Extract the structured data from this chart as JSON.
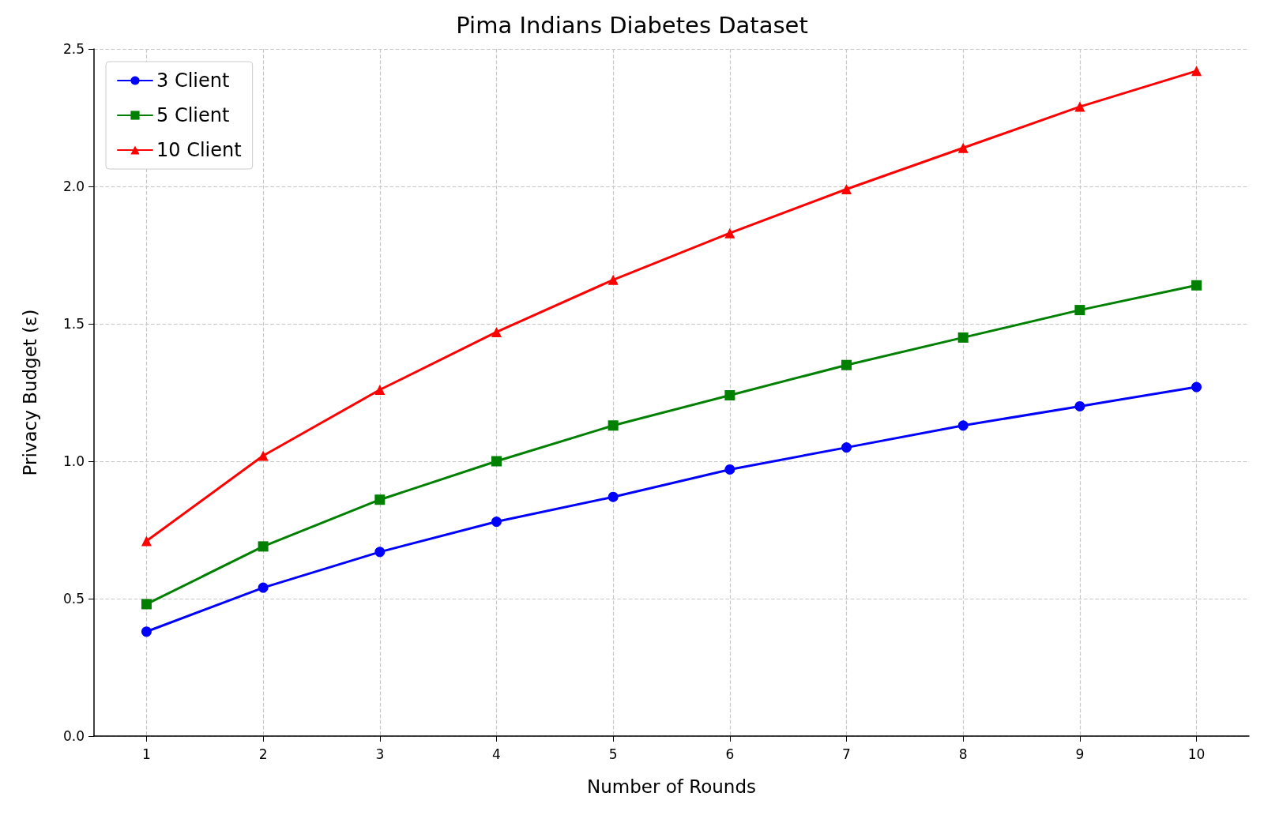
{
  "chart_data": {
    "type": "line",
    "title": "Pima Indians Diabetes Dataset",
    "xlabel": "Number of Rounds",
    "ylabel": "Privacy Budget (ε)",
    "x": [
      1,
      2,
      3,
      4,
      5,
      6,
      7,
      8,
      9,
      10
    ],
    "series": [
      {
        "name": "3 Client",
        "color": "#0000ff",
        "marker": "circle",
        "values": [
          0.38,
          0.54,
          0.67,
          0.78,
          0.87,
          0.97,
          1.05,
          1.13,
          1.2,
          1.27
        ]
      },
      {
        "name": "5 Client",
        "color": "#008000",
        "marker": "square",
        "values": [
          0.48,
          0.69,
          0.86,
          1.0,
          1.13,
          1.24,
          1.35,
          1.45,
          1.55,
          1.64
        ]
      },
      {
        "name": "10 Client",
        "color": "#ff0000",
        "marker": "triangle",
        "values": [
          0.71,
          1.02,
          1.26,
          1.47,
          1.66,
          1.83,
          1.99,
          2.14,
          2.29,
          2.42
        ]
      }
    ],
    "xlim": [
      0.55,
      10.45
    ],
    "xticks": [
      1,
      2,
      3,
      4,
      5,
      6,
      7,
      8,
      9,
      10
    ],
    "ylim": [
      0,
      2.5
    ],
    "yticks": [
      {
        "value": 0,
        "label": "0.0"
      },
      {
        "value": 0.5,
        "label": "0.5"
      },
      {
        "value": 1,
        "label": "1.0"
      },
      {
        "value": 1.5,
        "label": "1.5"
      },
      {
        "value": 2,
        "label": "2.0"
      },
      {
        "value": 2.5,
        "label": "2.5"
      }
    ],
    "grid": true,
    "legend": "top left",
    "line_style": "solid"
  }
}
